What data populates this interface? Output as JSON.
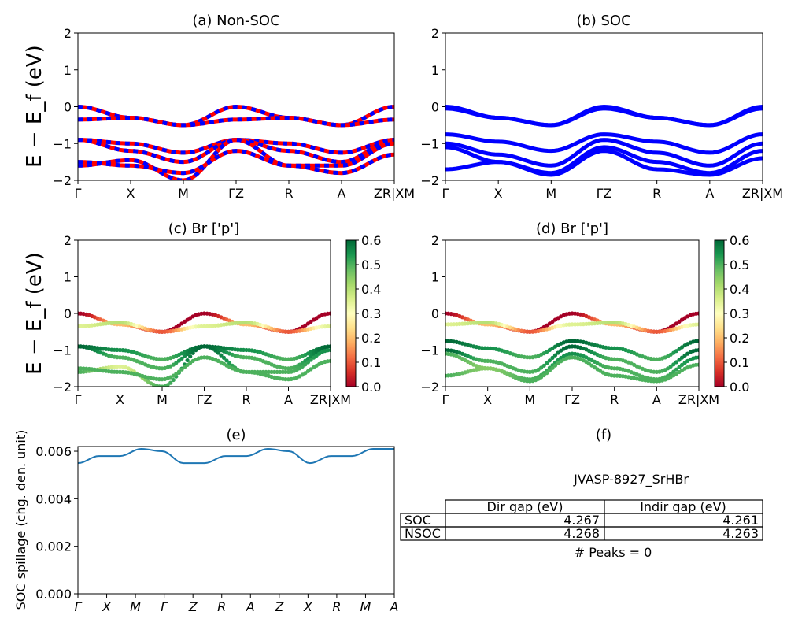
{
  "chart_data": [
    {
      "id": "a",
      "type": "line",
      "title": "(a) Non-SOC",
      "ylabel": "E − E_f (eV)",
      "ylim": [
        -2,
        2
      ],
      "yticks": [
        "2",
        "1",
        "0",
        "−1",
        "−2"
      ],
      "kpath_labels": [
        "Γ",
        "X",
        "M",
        "ΓZ",
        "R",
        "A",
        "ZR|XM"
      ],
      "series": [
        {
          "values": [
            0.0,
            -0.3,
            -0.5,
            0.0,
            -0.3,
            -0.5,
            0.0
          ]
        },
        {
          "values": [
            -0.35,
            -0.3,
            -0.5,
            -0.35,
            -0.3,
            -0.5,
            -0.35
          ]
        },
        {
          "values": [
            -0.9,
            -1.0,
            -1.25,
            -0.9,
            -1.0,
            -1.25,
            -0.9
          ]
        },
        {
          "values": [
            -0.9,
            -1.2,
            -1.5,
            -0.9,
            -1.2,
            -1.5,
            -0.9
          ]
        },
        {
          "values": [
            -1.6,
            -1.45,
            -2.0,
            -0.9,
            -1.6,
            -1.6,
            -1.0
          ]
        },
        {
          "values": [
            -1.5,
            -1.6,
            -1.8,
            -1.2,
            -1.6,
            -1.8,
            -1.3
          ]
        }
      ],
      "colors": [
        "#ff0000",
        "#0000ff"
      ]
    },
    {
      "id": "b",
      "type": "line",
      "title": "(b) SOC",
      "ylim": [
        -2,
        2
      ],
      "yticks": [
        "2",
        "1",
        "0",
        "−1",
        "−2"
      ],
      "kpath_labels": [
        "Γ",
        "X",
        "M",
        "ΓZ",
        "R",
        "A",
        "ZR|XM"
      ],
      "series": [
        {
          "values": [
            0.0,
            -0.3,
            -0.5,
            0.0,
            -0.3,
            -0.5,
            0.0
          ]
        },
        {
          "values": [
            -0.05,
            -0.3,
            -0.5,
            -0.05,
            -0.3,
            -0.5,
            -0.05
          ]
        },
        {
          "values": [
            -0.75,
            -0.95,
            -1.2,
            -0.75,
            -0.95,
            -1.25,
            -0.75
          ]
        },
        {
          "values": [
            -1.0,
            -1.3,
            -1.6,
            -0.9,
            -1.25,
            -1.6,
            -1.0
          ]
        },
        {
          "values": [
            -1.1,
            -1.5,
            -1.8,
            -1.1,
            -1.5,
            -1.8,
            -1.2
          ]
        },
        {
          "values": [
            -1.7,
            -1.5,
            -1.85,
            -1.2,
            -1.7,
            -1.85,
            -1.4
          ]
        }
      ],
      "colors": [
        "#0000ff"
      ]
    },
    {
      "id": "c",
      "type": "scatter",
      "title": "(c)  Br ['p']",
      "ylabel": "E − E_f (eV)",
      "ylim": [
        -2,
        2
      ],
      "yticks": [
        "2",
        "1",
        "0",
        "−1",
        "−2"
      ],
      "kpath_labels": [
        "Γ",
        "X",
        "M",
        "ΓZ",
        "R",
        "A",
        "ZR|XM"
      ],
      "colorbar": {
        "min": 0.0,
        "max": 0.6,
        "ticks": [
          "0.6",
          "0.5",
          "0.4",
          "0.3",
          "0.2",
          "0.1",
          "0.0"
        ]
      },
      "series": [
        {
          "values": [
            0.0,
            -0.3,
            -0.5,
            0.0,
            -0.3,
            -0.5,
            0.0
          ],
          "weights": [
            0.0,
            0.2,
            0.0,
            0.0,
            0.2,
            0.0,
            0.0
          ]
        },
        {
          "values": [
            -0.35,
            -0.25,
            -0.5,
            -0.35,
            -0.25,
            -0.5,
            -0.35
          ],
          "weights": [
            0.35,
            0.4,
            0.1,
            0.35,
            0.4,
            0.1,
            0.35
          ]
        },
        {
          "values": [
            -0.9,
            -1.0,
            -1.25,
            -0.9,
            -1.0,
            -1.25,
            -0.9
          ],
          "weights": [
            0.6,
            0.55,
            0.5,
            0.6,
            0.55,
            0.5,
            0.6
          ]
        },
        {
          "values": [
            -0.9,
            -1.2,
            -1.5,
            -0.9,
            -1.2,
            -1.5,
            -0.9
          ],
          "weights": [
            0.6,
            0.5,
            0.5,
            0.6,
            0.5,
            0.5,
            0.6
          ]
        },
        {
          "values": [
            -1.6,
            -1.45,
            -2.0,
            -0.9,
            -1.6,
            -1.6,
            -1.0
          ],
          "weights": [
            0.5,
            0.35,
            0.5,
            0.6,
            0.5,
            0.5,
            0.55
          ]
        },
        {
          "values": [
            -1.5,
            -1.6,
            -1.8,
            -1.2,
            -1.6,
            -1.8,
            -1.3
          ],
          "weights": [
            0.5,
            0.5,
            0.5,
            0.5,
            0.5,
            0.5,
            0.5
          ]
        }
      ]
    },
    {
      "id": "d",
      "type": "scatter",
      "title": "(d) Br ['p']",
      "ylim": [
        -2,
        2
      ],
      "yticks": [
        "2",
        "1",
        "0",
        "−1",
        "−2"
      ],
      "kpath_labels": [
        "Γ",
        "X",
        "M",
        "ΓZ",
        "R",
        "A",
        "ZR|XM"
      ],
      "colorbar": {
        "min": 0.0,
        "max": 0.6,
        "ticks": [
          "0.6",
          "0.5",
          "0.4",
          "0.3",
          "0.2",
          "0.1",
          "0.0"
        ]
      },
      "series": [
        {
          "values": [
            0.0,
            -0.3,
            -0.5,
            0.0,
            -0.3,
            -0.5,
            0.0
          ],
          "weights": [
            0.0,
            0.2,
            0.0,
            0.0,
            0.2,
            0.0,
            0.0
          ]
        },
        {
          "values": [
            -0.3,
            -0.25,
            -0.5,
            -0.3,
            -0.25,
            -0.5,
            -0.3
          ],
          "weights": [
            0.35,
            0.4,
            0.1,
            0.35,
            0.4,
            0.1,
            0.35
          ]
        },
        {
          "values": [
            -0.75,
            -0.95,
            -1.2,
            -0.75,
            -0.95,
            -1.25,
            -0.75
          ],
          "weights": [
            0.6,
            0.55,
            0.5,
            0.6,
            0.55,
            0.5,
            0.6
          ]
        },
        {
          "values": [
            -1.0,
            -1.3,
            -1.6,
            -0.9,
            -1.25,
            -1.6,
            -1.0
          ],
          "weights": [
            0.6,
            0.5,
            0.5,
            0.6,
            0.5,
            0.5,
            0.6
          ]
        },
        {
          "values": [
            -1.1,
            -1.5,
            -1.8,
            -1.1,
            -1.5,
            -1.8,
            -1.2
          ],
          "weights": [
            0.5,
            0.45,
            0.5,
            0.55,
            0.5,
            0.5,
            0.55
          ]
        },
        {
          "values": [
            -1.7,
            -1.5,
            -1.85,
            -1.2,
            -1.7,
            -1.85,
            -1.4
          ],
          "weights": [
            0.5,
            0.45,
            0.5,
            0.5,
            0.5,
            0.5,
            0.5
          ]
        }
      ]
    },
    {
      "id": "e",
      "type": "line",
      "title": "(e)",
      "ylabel": "SOC spillage (chg. den. unit)",
      "ylim": [
        0,
        0.0062
      ],
      "yticks": [
        "0.006",
        "0.004",
        "0.002",
        "0.000"
      ],
      "xtick_labels": [
        "Γ",
        "X",
        "M",
        "Γ",
        "Z",
        "R",
        "A",
        "Z",
        "X",
        "R",
        "M",
        "A"
      ],
      "color": "#1f77b4",
      "values": [
        0.0055,
        0.0058,
        0.0058,
        0.0061,
        0.006,
        0.0055,
        0.0055,
        0.0058,
        0.0058,
        0.0061,
        0.006,
        0.0055,
        0.0058,
        0.0058,
        0.0061,
        0.0061
      ]
    }
  ],
  "panel_f": {
    "title": "(f)",
    "material": "JVASP-8927_SrHBr",
    "table": {
      "headers": [
        "Dir gap (eV)",
        "Indir gap (eV)"
      ],
      "rows": [
        {
          "label": "SOC",
          "dir": "4.267",
          "indir": "4.261"
        },
        {
          "label": "NSOC",
          "dir": "4.268",
          "indir": "4.263"
        }
      ]
    },
    "peaks": "# Peaks = 0"
  }
}
